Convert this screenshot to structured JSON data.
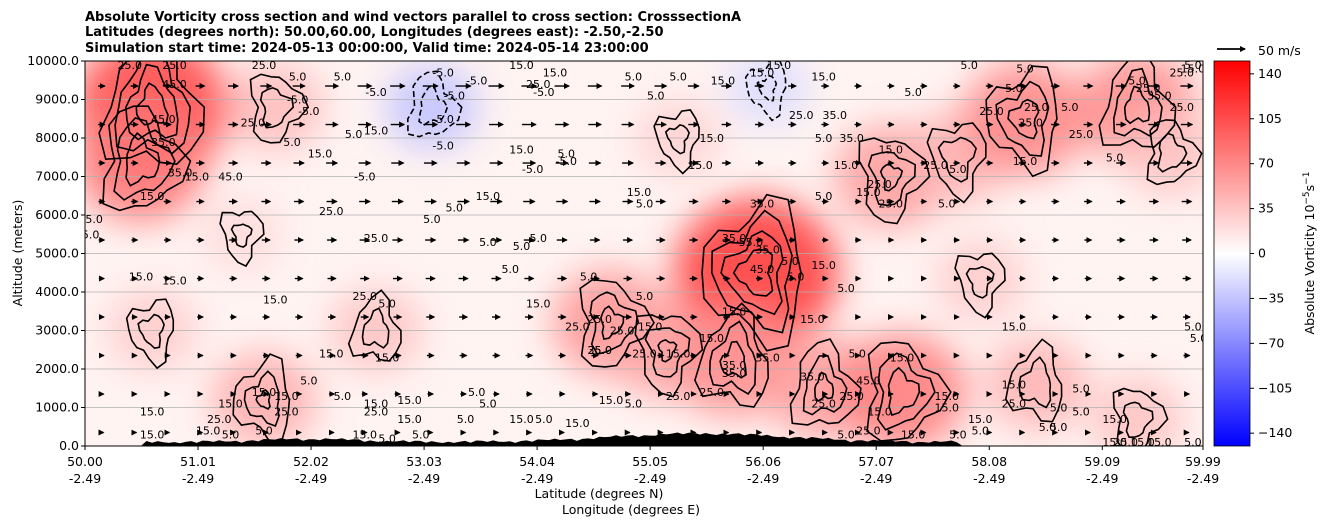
{
  "chart_data": {
    "type": "heatmap",
    "title_lines": [
      "Absolute Vorticity cross section and wind vectors parallel to cross section: CrosssectionA",
      "Latitudes (degrees north): 50.00,60.00, Longitudes (degrees east): -2.50,-2.50",
      "Simulation start time: 2024-05-13 00:00:00, Valid time: 2024-05-14 23:00:00"
    ],
    "xlabel_lines": [
      "Latitude (degrees N)",
      "Longitude (degrees E)"
    ],
    "ylabel": "Altitude (meters)",
    "x_ticks": [
      {
        "lat": "50.00",
        "lon": "-2.49"
      },
      {
        "lat": "51.01",
        "lon": "-2.49"
      },
      {
        "lat": "52.02",
        "lon": "-2.49"
      },
      {
        "lat": "53.03",
        "lon": "-2.49"
      },
      {
        "lat": "54.04",
        "lon": "-2.49"
      },
      {
        "lat": "55.05",
        "lon": "-2.49"
      },
      {
        "lat": "56.06",
        "lon": "-2.49"
      },
      {
        "lat": "57.07",
        "lon": "-2.49"
      },
      {
        "lat": "58.08",
        "lon": "-2.49"
      },
      {
        "lat": "59.09",
        "lon": "-2.49"
      },
      {
        "lat": "59.99",
        "lon": "-2.49"
      }
    ],
    "xlim": [
      50.0,
      59.99
    ],
    "y_ticks": [
      "0.0",
      "1000.0",
      "2000.0",
      "3000.0",
      "4000.0",
      "5000.0",
      "6000.0",
      "7000.0",
      "8000.0",
      "9000.0",
      "10000.0"
    ],
    "ylim": [
      0,
      10000
    ],
    "grid": "horizontal",
    "colorbar": {
      "label": "Absolute Vorticity 10",
      "label_exp": "−5",
      "label_unit": "s",
      "label_unit_exp": "−1",
      "ticks": [
        "140",
        "105",
        "70",
        "35",
        "0",
        "−35",
        "−70",
        "−105",
        "−140"
      ],
      "range": [
        -150,
        150
      ],
      "cmap": "bwr",
      "low_color": "#0000ff",
      "mid_color": "#ffffff",
      "high_color": "#ff0000"
    },
    "quiver_key": "50 m/s",
    "contour_levels_labelled": [
      "-5.0",
      "5.0",
      "15.0",
      "25.0",
      "35.0",
      "45.0",
      "55.0"
    ],
    "vorticity_blobs": [
      {
        "lat": 50.6,
        "alt": 8800,
        "value": 48
      },
      {
        "lat": 50.5,
        "alt": 7400,
        "value": 36
      },
      {
        "lat": 51.7,
        "alt": 8800,
        "value": 18
      },
      {
        "lat": 51.4,
        "alt": 5500,
        "value": 10
      },
      {
        "lat": 50.6,
        "alt": 3000,
        "value": 14
      },
      {
        "lat": 51.6,
        "alt": 1200,
        "value": 22
      },
      {
        "lat": 52.6,
        "alt": 3000,
        "value": 16
      },
      {
        "lat": 53.1,
        "alt": 8800,
        "value": -16
      },
      {
        "lat": 54.7,
        "alt": 3200,
        "value": 28
      },
      {
        "lat": 55.2,
        "alt": 2500,
        "value": 24
      },
      {
        "lat": 55.3,
        "alt": 8000,
        "value": 12
      },
      {
        "lat": 56.0,
        "alt": 4500,
        "value": 52
      },
      {
        "lat": 55.8,
        "alt": 2200,
        "value": 30
      },
      {
        "lat": 56.6,
        "alt": 1500,
        "value": 26
      },
      {
        "lat": 57.3,
        "alt": 1400,
        "value": 34
      },
      {
        "lat": 57.2,
        "alt": 7000,
        "value": 26
      },
      {
        "lat": 57.8,
        "alt": 7500,
        "value": 20
      },
      {
        "lat": 58.4,
        "alt": 8500,
        "value": 32
      },
      {
        "lat": 58.5,
        "alt": 1600,
        "value": 20
      },
      {
        "lat": 59.4,
        "alt": 8800,
        "value": 30
      },
      {
        "lat": 59.7,
        "alt": 7600,
        "value": 16
      },
      {
        "lat": 59.4,
        "alt": 700,
        "value": 16
      },
      {
        "lat": 58.0,
        "alt": 4300,
        "value": 14
      },
      {
        "lat": 56.1,
        "alt": 9300,
        "value": -10
      }
    ],
    "contour_labels": [
      {
        "lat": 50.4,
        "alt": 9900,
        "text": "25.0"
      },
      {
        "lat": 50.8,
        "alt": 9900,
        "text": "25.0"
      },
      {
        "lat": 50.8,
        "alt": 9400,
        "text": "45.0"
      },
      {
        "lat": 50.7,
        "alt": 8500,
        "text": "45.0"
      },
      {
        "lat": 50.7,
        "alt": 7900,
        "text": "35.0"
      },
      {
        "lat": 50.85,
        "alt": 7100,
        "text": "35.0"
      },
      {
        "lat": 51.0,
        "alt": 7000,
        "text": "15.0"
      },
      {
        "lat": 51.3,
        "alt": 7000,
        "text": "45.0"
      },
      {
        "lat": 50.6,
        "alt": 6500,
        "text": "15.0"
      },
      {
        "lat": 50.05,
        "alt": 5900,
        "text": "15.0"
      },
      {
        "lat": 50.05,
        "alt": 5500,
        "text": "5.0"
      },
      {
        "lat": 51.6,
        "alt": 9900,
        "text": "25.0"
      },
      {
        "lat": 51.9,
        "alt": 9600,
        "text": "5.0"
      },
      {
        "lat": 51.5,
        "alt": 8400,
        "text": "25.0"
      },
      {
        "lat": 51.9,
        "alt": 9000,
        "text": "-5.0"
      },
      {
        "lat": 52.0,
        "alt": 8700,
        "text": "-5.0"
      },
      {
        "lat": 51.85,
        "alt": 7900,
        "text": "5.0"
      },
      {
        "lat": 52.1,
        "alt": 7600,
        "text": "15.0"
      },
      {
        "lat": 52.2,
        "alt": 6100,
        "text": "25.0"
      },
      {
        "lat": 52.4,
        "alt": 8100,
        "text": "5.0"
      },
      {
        "lat": 52.3,
        "alt": 9600,
        "text": "5.0"
      },
      {
        "lat": 52.6,
        "alt": 9200,
        "text": "-5.0"
      },
      {
        "lat": 52.6,
        "alt": 8200,
        "text": "15.0"
      },
      {
        "lat": 52.5,
        "alt": 7000,
        "text": "-5.0"
      },
      {
        "lat": 52.6,
        "alt": 5400,
        "text": "25.0"
      },
      {
        "lat": 52.5,
        "alt": 3900,
        "text": "25.0"
      },
      {
        "lat": 52.7,
        "alt": 3700,
        "text": "5.0"
      },
      {
        "lat": 53.2,
        "alt": 9700,
        "text": "-5.0"
      },
      {
        "lat": 53.3,
        "alt": 9100,
        "text": "-5.0"
      },
      {
        "lat": 53.5,
        "alt": 9500,
        "text": "-5.0"
      },
      {
        "lat": 53.2,
        "alt": 8500,
        "text": "-5.0"
      },
      {
        "lat": 53.2,
        "alt": 7800,
        "text": "-5.0"
      },
      {
        "lat": 53.3,
        "alt": 6200,
        "text": "5.0"
      },
      {
        "lat": 53.1,
        "alt": 5900,
        "text": "5.0"
      },
      {
        "lat": 53.9,
        "alt": 9900,
        "text": "15.0"
      },
      {
        "lat": 54.2,
        "alt": 9700,
        "text": "15.0"
      },
      {
        "lat": 54.05,
        "alt": 9400,
        "text": "25.0"
      },
      {
        "lat": 53.9,
        "alt": 7700,
        "text": "15.0"
      },
      {
        "lat": 54.0,
        "alt": 7200,
        "text": "-5.0"
      },
      {
        "lat": 54.3,
        "alt": 7400,
        "text": "-5.0"
      },
      {
        "lat": 54.3,
        "alt": 7600,
        "text": "5.0"
      },
      {
        "lat": 53.6,
        "alt": 6500,
        "text": "15.0"
      },
      {
        "lat": 53.6,
        "alt": 5300,
        "text": "5.0"
      },
      {
        "lat": 53.9,
        "alt": 5200,
        "text": "5.0"
      },
      {
        "lat": 53.8,
        "alt": 4600,
        "text": "5.0"
      },
      {
        "lat": 54.05,
        "alt": 5400,
        "text": "5.0"
      },
      {
        "lat": 54.5,
        "alt": 4400,
        "text": "5.0"
      },
      {
        "lat": 54.9,
        "alt": 9600,
        "text": "5.0"
      },
      {
        "lat": 54.1,
        "alt": 9200,
        "text": "-5.0"
      },
      {
        "lat": 55.1,
        "alt": 9100,
        "text": "5.0"
      },
      {
        "lat": 55.3,
        "alt": 9600,
        "text": "5.0"
      },
      {
        "lat": 55.7,
        "alt": 9500,
        "text": "15.0"
      },
      {
        "lat": 55.6,
        "alt": 8000,
        "text": "15.0"
      },
      {
        "lat": 55.5,
        "alt": 7300,
        "text": "15.0"
      },
      {
        "lat": 54.95,
        "alt": 6600,
        "text": "15.0"
      },
      {
        "lat": 55.0,
        "alt": 6300,
        "text": "5.0"
      },
      {
        "lat": 55.0,
        "alt": 3900,
        "text": "5.0"
      },
      {
        "lat": 54.05,
        "alt": 3700,
        "text": "15.0"
      },
      {
        "lat": 54.4,
        "alt": 3100,
        "text": "25.0"
      },
      {
        "lat": 54.6,
        "alt": 3300,
        "text": "25.0"
      },
      {
        "lat": 54.8,
        "alt": 3000,
        "text": "25.0"
      },
      {
        "lat": 55.05,
        "alt": 3100,
        "text": "15.0"
      },
      {
        "lat": 54.6,
        "alt": 2500,
        "text": "25.0"
      },
      {
        "lat": 54.6,
        "alt": 2500,
        "text": "35.0"
      },
      {
        "lat": 55.0,
        "alt": 2400,
        "text": "25.0"
      },
      {
        "lat": 55.3,
        "alt": 2400,
        "text": "15.0"
      },
      {
        "lat": 55.6,
        "alt": 2800,
        "text": "15.0"
      },
      {
        "lat": 55.6,
        "alt": 1400,
        "text": "25.0"
      },
      {
        "lat": 55.3,
        "alt": 1300,
        "text": "25.0"
      },
      {
        "lat": 54.9,
        "alt": 1100,
        "text": "5.0"
      },
      {
        "lat": 54.7,
        "alt": 1200,
        "text": "15.0"
      },
      {
        "lat": 54.4,
        "alt": 600,
        "text": "15.0"
      },
      {
        "lat": 54.1,
        "alt": 700,
        "text": "5.0"
      },
      {
        "lat": 53.9,
        "alt": 700,
        "text": "15.0"
      },
      {
        "lat": 56.05,
        "alt": 9700,
        "text": "15.0"
      },
      {
        "lat": 56.2,
        "alt": 9900,
        "text": "15.0"
      },
      {
        "lat": 56.6,
        "alt": 9600,
        "text": "15.0"
      },
      {
        "lat": 56.4,
        "alt": 8600,
        "text": "25.0"
      },
      {
        "lat": 56.7,
        "alt": 8600,
        "text": "35.0"
      },
      {
        "lat": 56.85,
        "alt": 8000,
        "text": "35.0"
      },
      {
        "lat": 56.6,
        "alt": 8000,
        "text": "5.0"
      },
      {
        "lat": 56.8,
        "alt": 7300,
        "text": "15.0"
      },
      {
        "lat": 56.6,
        "alt": 6500,
        "text": "5.0"
      },
      {
        "lat": 57.0,
        "alt": 6600,
        "text": "15.0"
      },
      {
        "lat": 57.1,
        "alt": 6800,
        "text": "25.0"
      },
      {
        "lat": 57.2,
        "alt": 7700,
        "text": "15.0"
      },
      {
        "lat": 57.2,
        "alt": 6300,
        "text": "25.0"
      },
      {
        "lat": 56.05,
        "alt": 6300,
        "text": "35.0"
      },
      {
        "lat": 55.95,
        "alt": 5300,
        "text": "55.0"
      },
      {
        "lat": 56.1,
        "alt": 5100,
        "text": "35.0"
      },
      {
        "lat": 55.8,
        "alt": 5400,
        "text": "35.0"
      },
      {
        "lat": 56.05,
        "alt": 4600,
        "text": "45.0"
      },
      {
        "lat": 56.3,
        "alt": 4800,
        "text": "5.0"
      },
      {
        "lat": 56.35,
        "alt": 4400,
        "text": "5.0"
      },
      {
        "lat": 56.6,
        "alt": 4700,
        "text": "15.0"
      },
      {
        "lat": 56.8,
        "alt": 4100,
        "text": "5.0"
      },
      {
        "lat": 56.5,
        "alt": 3300,
        "text": "15.0"
      },
      {
        "lat": 56.9,
        "alt": 2400,
        "text": "5.0"
      },
      {
        "lat": 55.8,
        "alt": 3500,
        "text": "15.0"
      },
      {
        "lat": 55.8,
        "alt": 2100,
        "text": "35.0"
      },
      {
        "lat": 56.1,
        "alt": 2300,
        "text": "35.0"
      },
      {
        "lat": 55.8,
        "alt": 1900,
        "text": "35.0"
      },
      {
        "lat": 56.5,
        "alt": 1800,
        "text": "35.0"
      },
      {
        "lat": 57.0,
        "alt": 1700,
        "text": "45.0"
      },
      {
        "lat": 56.6,
        "alt": 1100,
        "text": "25.0"
      },
      {
        "lat": 56.85,
        "alt": 1300,
        "text": "25.0"
      },
      {
        "lat": 57.1,
        "alt": 900,
        "text": "15.0"
      },
      {
        "lat": 57.0,
        "alt": 400,
        "text": "25.0"
      },
      {
        "lat": 56.8,
        "alt": 300,
        "text": "5.0"
      },
      {
        "lat": 57.4,
        "alt": 9200,
        "text": "5.0"
      },
      {
        "lat": 57.9,
        "alt": 9900,
        "text": "5.0"
      },
      {
        "lat": 58.4,
        "alt": 9800,
        "text": "5.0"
      },
      {
        "lat": 58.1,
        "alt": 8700,
        "text": "25.0"
      },
      {
        "lat": 58.3,
        "alt": 9300,
        "text": "5.0"
      },
      {
        "lat": 58.5,
        "alt": 8800,
        "text": "25.0"
      },
      {
        "lat": 58.9,
        "alt": 8100,
        "text": "25.0"
      },
      {
        "lat": 58.45,
        "alt": 8400,
        "text": "25.0"
      },
      {
        "lat": 58.8,
        "alt": 8800,
        "text": "5.0"
      },
      {
        "lat": 58.4,
        "alt": 7400,
        "text": "15.0"
      },
      {
        "lat": 59.2,
        "alt": 7500,
        "text": "5.0"
      },
      {
        "lat": 57.6,
        "alt": 7300,
        "text": "25.0"
      },
      {
        "lat": 57.8,
        "alt": 7200,
        "text": "5.0"
      },
      {
        "lat": 57.7,
        "alt": 6300,
        "text": "5.0"
      },
      {
        "lat": 59.4,
        "alt": 9500,
        "text": "5.0"
      },
      {
        "lat": 59.5,
        "alt": 9300,
        "text": "25.0"
      },
      {
        "lat": 59.6,
        "alt": 9100,
        "text": "35.0"
      },
      {
        "lat": 59.8,
        "alt": 9700,
        "text": "25.0"
      },
      {
        "lat": 59.9,
        "alt": 9800,
        "text": "15.0"
      },
      {
        "lat": 59.9,
        "alt": 9900,
        "text": "5.0"
      },
      {
        "lat": 59.8,
        "alt": 8800,
        "text": "25.0"
      },
      {
        "lat": 59.9,
        "alt": 3100,
        "text": "5.0"
      },
      {
        "lat": 59.95,
        "alt": 2800,
        "text": "5.0"
      },
      {
        "lat": 58.3,
        "alt": 3100,
        "text": "15.0"
      },
      {
        "lat": 57.3,
        "alt": 2300,
        "text": "15.0"
      },
      {
        "lat": 58.3,
        "alt": 1600,
        "text": "15.0"
      },
      {
        "lat": 58.3,
        "alt": 1100,
        "text": "25.0"
      },
      {
        "lat": 57.7,
        "alt": 1300,
        "text": "15.0"
      },
      {
        "lat": 57.7,
        "alt": 1000,
        "text": "15.0"
      },
      {
        "lat": 58.9,
        "alt": 1500,
        "text": "5.0"
      },
      {
        "lat": 58.7,
        "alt": 1000,
        "text": "5.0"
      },
      {
        "lat": 58.9,
        "alt": 900,
        "text": "5.0"
      },
      {
        "lat": 58.0,
        "alt": 700,
        "text": "15.0"
      },
      {
        "lat": 57.4,
        "alt": 300,
        "text": "15.0"
      },
      {
        "lat": 57.8,
        "alt": 300,
        "text": "5.0"
      },
      {
        "lat": 58.0,
        "alt": 400,
        "text": "5.0"
      },
      {
        "lat": 58.6,
        "alt": 500,
        "text": "5.0"
      },
      {
        "lat": 58.7,
        "alt": 500,
        "text": "5.0"
      },
      {
        "lat": 59.2,
        "alt": 700,
        "text": "15.0"
      },
      {
        "lat": 59.2,
        "alt": 100,
        "text": "15.0"
      },
      {
        "lat": 59.3,
        "alt": 100,
        "text": "25.0"
      },
      {
        "lat": 59.45,
        "alt": 100,
        "text": "15.0"
      },
      {
        "lat": 59.6,
        "alt": 100,
        "text": "15.0"
      },
      {
        "lat": 59.9,
        "alt": 100,
        "text": "5.0"
      },
      {
        "lat": 50.5,
        "alt": 4400,
        "text": "15.0"
      },
      {
        "lat": 50.8,
        "alt": 4300,
        "text": "15.0"
      },
      {
        "lat": 50.6,
        "alt": 900,
        "text": "15.0"
      },
      {
        "lat": 50.6,
        "alt": 300,
        "text": "15.0"
      },
      {
        "lat": 51.1,
        "alt": 400,
        "text": "15.0"
      },
      {
        "lat": 51.2,
        "alt": 700,
        "text": "25.0"
      },
      {
        "lat": 51.3,
        "alt": 300,
        "text": "5.0"
      },
      {
        "lat": 51.6,
        "alt": 400,
        "text": "5.0"
      },
      {
        "lat": 51.3,
        "alt": 1100,
        "text": "15.0"
      },
      {
        "lat": 51.6,
        "alt": 1400,
        "text": "15.0"
      },
      {
        "lat": 51.8,
        "alt": 1300,
        "text": "15.0"
      },
      {
        "lat": 51.8,
        "alt": 900,
        "text": "25.0"
      },
      {
        "lat": 52.0,
        "alt": 1700,
        "text": "5.0"
      },
      {
        "lat": 51.7,
        "alt": 3800,
        "text": "15.0"
      },
      {
        "lat": 52.2,
        "alt": 2400,
        "text": "15.0"
      },
      {
        "lat": 52.3,
        "alt": 1300,
        "text": "5.0"
      },
      {
        "lat": 52.6,
        "alt": 1100,
        "text": "15.0"
      },
      {
        "lat": 52.7,
        "alt": 2300,
        "text": "15.0"
      },
      {
        "lat": 52.6,
        "alt": 900,
        "text": "25.0"
      },
      {
        "lat": 52.9,
        "alt": 1200,
        "text": "15.0"
      },
      {
        "lat": 52.9,
        "alt": 700,
        "text": "15.0"
      },
      {
        "lat": 53.0,
        "alt": 300,
        "text": "5.0"
      },
      {
        "lat": 53.5,
        "alt": 1400,
        "text": "5.0"
      },
      {
        "lat": 53.6,
        "alt": 1100,
        "text": "5.0"
      },
      {
        "lat": 53.4,
        "alt": 700,
        "text": "5.0"
      },
      {
        "lat": 52.5,
        "alt": 300,
        "text": "15.0"
      },
      {
        "lat": 52.7,
        "alt": 200,
        "text": "5.0"
      }
    ]
  }
}
